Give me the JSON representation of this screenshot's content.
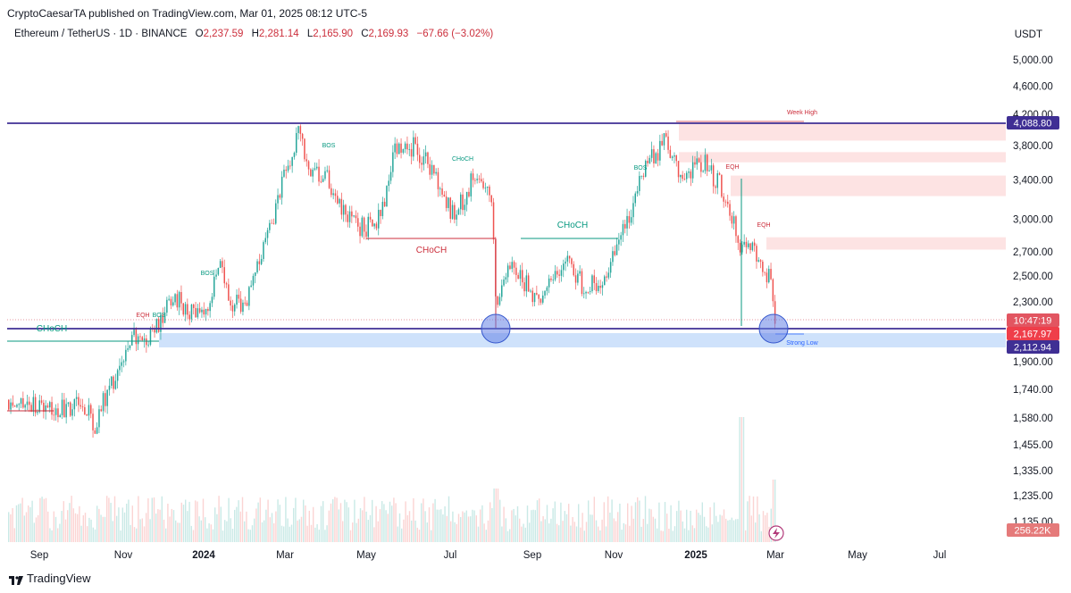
{
  "header": {
    "publisher_line": "CryptoCaesarTA published on TradingView.com, Mar 01, 2025 08:12 UTC-5"
  },
  "symbol": {
    "name": "Ethereum / TetherUS · 1D · BINANCE",
    "open_label": "O",
    "open": "2,237.59",
    "high_label": "H",
    "high": "2,281.14",
    "low_label": "L",
    "low": "2,165.90",
    "close_label": "C",
    "close": "2,169.93",
    "change": "−67.66 (−3.02%)"
  },
  "currency": "USDT",
  "footer": {
    "brand": "TradingView"
  },
  "colors": {
    "up": "#26a69a",
    "down": "#ef5350",
    "structure_green": "#089981",
    "structure_red": "#cc2f3c",
    "level_line": "#3f2f94",
    "supply_zone": "#fde3e3",
    "demand_zone": "#cfe2fb",
    "circle": "#7d99ea"
  },
  "chart_data": {
    "type": "candlestick",
    "y_axis_ticks": [
      "5,000.00",
      "4,600.00",
      "4,200.00",
      "3,800.00",
      "3,400.00",
      "3,000.00",
      "2,700.00",
      "2,500.00",
      "2,300.00",
      "1,900.00",
      "1,740.00",
      "1,580.00",
      "1,455.00",
      "1,335.00",
      "1,235.00",
      "1,135.00"
    ],
    "x_axis_ticks": [
      "Sep",
      "Nov",
      "2024",
      "Mar",
      "May",
      "Jul",
      "Sep",
      "Nov",
      "2025",
      "Mar",
      "May",
      "Jul"
    ],
    "bold_x_ticks": [
      "2024",
      "2025"
    ],
    "price_labels": {
      "resistance": "4,088.80",
      "countdown": "10:47:19",
      "last_price": "2,167.97",
      "support": "2,112.94",
      "volume": "256.22K"
    },
    "close_path": [
      {
        "date": "2023-08-20",
        "close": 1680
      },
      {
        "date": "2023-09-01",
        "close": 1640
      },
      {
        "date": "2023-09-15",
        "close": 1620
      },
      {
        "date": "2023-10-01",
        "close": 1680
      },
      {
        "date": "2023-10-12",
        "close": 1550
      },
      {
        "date": "2023-10-25",
        "close": 1790
      },
      {
        "date": "2023-11-10",
        "close": 2050
      },
      {
        "date": "2023-11-25",
        "close": 2080
      },
      {
        "date": "2023-12-08",
        "close": 2330
      },
      {
        "date": "2023-12-20",
        "close": 2250
      },
      {
        "date": "2024-01-05",
        "close": 2270
      },
      {
        "date": "2024-01-12",
        "close": 2600
      },
      {
        "date": "2024-01-22",
        "close": 2250
      },
      {
        "date": "2024-02-05",
        "close": 2380
      },
      {
        "date": "2024-02-20",
        "close": 2950
      },
      {
        "date": "2024-03-01",
        "close": 3450
      },
      {
        "date": "2024-03-12",
        "close": 4050
      },
      {
        "date": "2024-03-20",
        "close": 3400
      },
      {
        "date": "2024-04-01",
        "close": 3500
      },
      {
        "date": "2024-04-12",
        "close": 3050
      },
      {
        "date": "2024-04-30",
        "close": 2900
      },
      {
        "date": "2024-05-12",
        "close": 3050
      },
      {
        "date": "2024-05-22",
        "close": 3750
      },
      {
        "date": "2024-06-05",
        "close": 3800
      },
      {
        "date": "2024-06-18",
        "close": 3500
      },
      {
        "date": "2024-07-05",
        "close": 3000
      },
      {
        "date": "2024-07-20",
        "close": 3450
      },
      {
        "date": "2024-08-01",
        "close": 3200
      },
      {
        "date": "2024-08-05",
        "close": 2300
      },
      {
        "date": "2024-08-15",
        "close": 2650
      },
      {
        "date": "2024-09-06",
        "close": 2250
      },
      {
        "date": "2024-09-25",
        "close": 2650
      },
      {
        "date": "2024-10-10",
        "close": 2400
      },
      {
        "date": "2024-10-25",
        "close": 2500
      },
      {
        "date": "2024-11-08",
        "close": 2900
      },
      {
        "date": "2024-11-25",
        "close": 3550
      },
      {
        "date": "2024-12-10",
        "close": 3900
      },
      {
        "date": "2024-12-20",
        "close": 3400
      },
      {
        "date": "2025-01-06",
        "close": 3600
      },
      {
        "date": "2025-01-20",
        "close": 3300
      },
      {
        "date": "2025-02-03",
        "close": 2750
      },
      {
        "date": "2025-02-12",
        "close": 2700
      },
      {
        "date": "2025-02-24",
        "close": 2500
      },
      {
        "date": "2025-03-01",
        "close": 2170
      }
    ],
    "levels": [
      {
        "name": "resistance",
        "price": 4088.8
      },
      {
        "name": "support",
        "price": 2112.94
      }
    ],
    "annotations": [
      {
        "text": "CHoCH",
        "date": "2024-06-10",
        "price": 2580,
        "color": "red",
        "size": "big"
      },
      {
        "text": "CHoCH",
        "date": "2024-09-25",
        "price": 2830,
        "color": "green",
        "size": "big"
      },
      {
        "text": "CHoCH",
        "date": "2023-08-30",
        "price": 2080,
        "color": "green",
        "size": "big"
      },
      {
        "text": "Week High",
        "date": "2025-01-15",
        "price": 4260,
        "color": "red",
        "size": "small"
      },
      {
        "text": "Strong Low",
        "date": "2025-03-10",
        "price": 2010,
        "color": "blue",
        "size": "small"
      },
      {
        "text": "EQH",
        "date": "2025-02-10",
        "price": 3660,
        "color": "red",
        "size": "small"
      },
      {
        "text": "EQH",
        "date": "2025-02-20",
        "price": 2970,
        "color": "red",
        "size": "small"
      },
      {
        "text": "BOS",
        "date": "2024-03-25",
        "price": 3860,
        "color": "green",
        "size": "small"
      },
      {
        "text": "BOS",
        "date": "2024-01-08",
        "price": 2650,
        "color": "green",
        "size": "small"
      },
      {
        "text": "BOS",
        "date": "2024-11-18",
        "price": 3580,
        "color": "green",
        "size": "small"
      },
      {
        "text": "CHoCH",
        "date": "2024-07-18",
        "price": 3620,
        "color": "green",
        "size": "small"
      },
      {
        "text": "EQH",
        "date": "2023-11-20",
        "price": 2180,
        "color": "red",
        "size": "small"
      },
      {
        "text": "BOS",
        "date": "2023-12-01",
        "price": 2180,
        "color": "green",
        "size": "small"
      }
    ]
  }
}
